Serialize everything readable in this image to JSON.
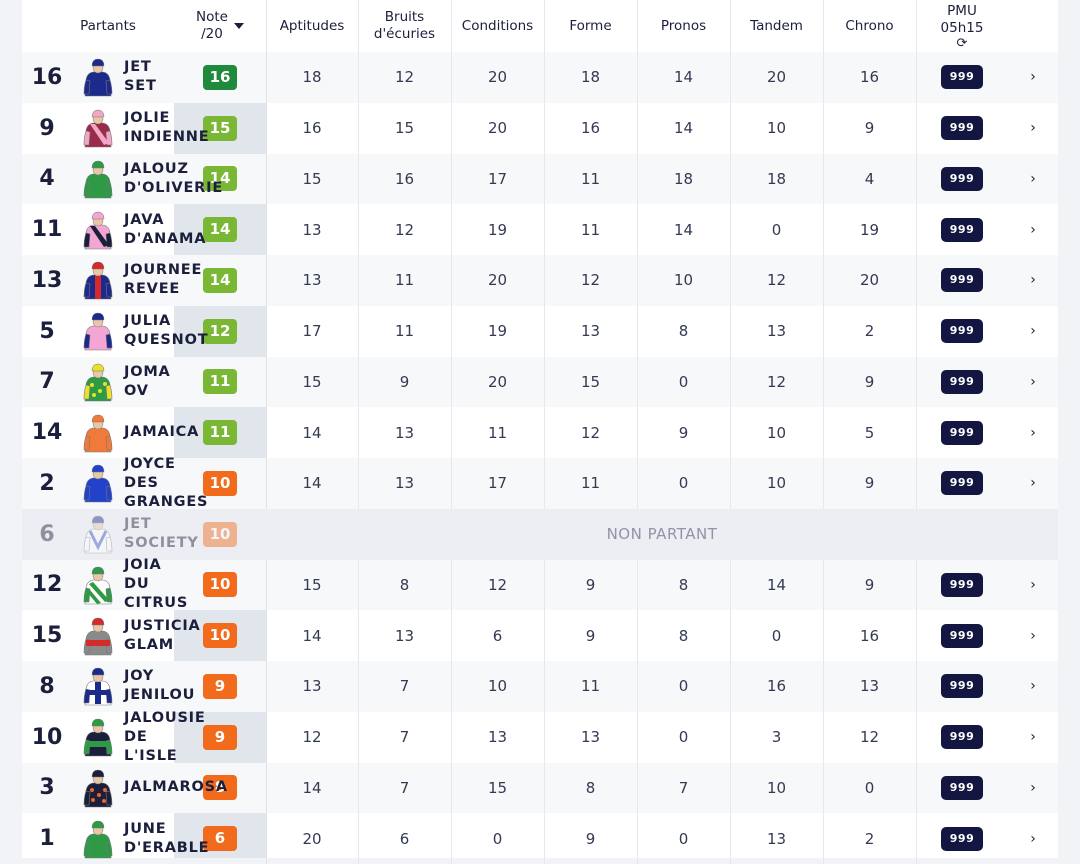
{
  "headers": {
    "partants": "Partants",
    "note": "Note\n/20",
    "aptitudes": "Aptitudes",
    "bruits": "Bruits\nd'écuries",
    "conditions": "Conditions",
    "forme": "Forme",
    "pronos": "Pronos",
    "tandem": "Tandem",
    "chrono": "Chrono",
    "pmu_title": "PMU",
    "pmu_time": "05h15",
    "refresh_icon": "⟳"
  },
  "colors": {
    "dark_green": "#1f8a3c",
    "light_green": "#7ab735",
    "orange": "#f26a1b",
    "odds_bg": "#121640"
  },
  "non_partant_label": "NON PARTANT",
  "odds_label": "999",
  "arrow": "›",
  "runners": [
    {
      "num": "16",
      "name": "JET\nSET",
      "note": "16",
      "note_color": "#1f8a3c",
      "aptitudes": "18",
      "bruits": "12",
      "conditions": "20",
      "forme": "18",
      "pronos": "14",
      "tandem": "20",
      "chrono": "16",
      "silk": {
        "body": "#1c2a8c",
        "sleeves": "#1c2a8c",
        "cap": "#1c2a8c",
        "pattern": "plain"
      }
    },
    {
      "num": "9",
      "name": "JOLIE\nINDIENNE",
      "note": "15",
      "note_color": "#7ab735",
      "aptitudes": "16",
      "bruits": "15",
      "conditions": "20",
      "forme": "16",
      "pronos": "14",
      "tandem": "10",
      "chrono": "9",
      "silk": {
        "body": "#9c2a4a",
        "sleeves": "#f1a7c6",
        "cap": "#f1a7c6",
        "pattern": "sash"
      }
    },
    {
      "num": "4",
      "name": "JALOUZ\nD'OLIVERIE",
      "note": "14",
      "note_color": "#7ab735",
      "aptitudes": "15",
      "bruits": "16",
      "conditions": "17",
      "forme": "11",
      "pronos": "18",
      "tandem": "18",
      "chrono": "4",
      "silk": {
        "body": "#2e9a45",
        "sleeves": "#2e9a45",
        "cap": "#2e9a45",
        "pattern": "plain"
      }
    },
    {
      "num": "11",
      "name": "JAVA\nD'ANAMA",
      "note": "14",
      "note_color": "#7ab735",
      "aptitudes": "13",
      "bruits": "12",
      "conditions": "19",
      "forme": "11",
      "pronos": "14",
      "tandem": "0",
      "chrono": "19",
      "silk": {
        "body": "#f3a6d4",
        "sleeves": "#1b1f3b",
        "cap": "#f3a6d4",
        "pattern": "sash"
      }
    },
    {
      "num": "13",
      "name": "JOURNEE\nREVEE",
      "note": "14",
      "note_color": "#7ab735",
      "aptitudes": "13",
      "bruits": "11",
      "conditions": "20",
      "forme": "12",
      "pronos": "10",
      "tandem": "12",
      "chrono": "20",
      "silk": {
        "body": "#1c2a8c",
        "sleeves": "#1c2a8c",
        "cap": "#d42a2a",
        "pattern": "stripe"
      }
    },
    {
      "num": "5",
      "name": "JULIA\nQUESNOT",
      "note": "12",
      "note_color": "#7ab735",
      "aptitudes": "17",
      "bruits": "11",
      "conditions": "19",
      "forme": "13",
      "pronos": "8",
      "tandem": "13",
      "chrono": "2",
      "silk": {
        "body": "#f3a6d4",
        "sleeves": "#1c2a8c",
        "cap": "#1c2a8c",
        "pattern": "plain"
      }
    },
    {
      "num": "7",
      "name": "JOMA\nOV",
      "note": "11",
      "note_color": "#7ab735",
      "aptitudes": "15",
      "bruits": "9",
      "conditions": "20",
      "forme": "15",
      "pronos": "0",
      "tandem": "12",
      "chrono": "9",
      "silk": {
        "body": "#2e9a45",
        "sleeves": "#e9e02b",
        "cap": "#e9e02b",
        "pattern": "check"
      }
    },
    {
      "num": "14",
      "name": "JAMAICA",
      "note": "11",
      "note_color": "#7ab735",
      "aptitudes": "14",
      "bruits": "13",
      "conditions": "11",
      "forme": "12",
      "pronos": "9",
      "tandem": "10",
      "chrono": "5",
      "silk": {
        "body": "#f07a3a",
        "sleeves": "#f07a3a",
        "cap": "#f07a3a",
        "pattern": "plain"
      }
    },
    {
      "num": "2",
      "name": "JOYCE\nDES\nGRANGES",
      "note": "10",
      "note_color": "#f26a1b",
      "aptitudes": "14",
      "bruits": "13",
      "conditions": "17",
      "forme": "11",
      "pronos": "0",
      "tandem": "10",
      "chrono": "9",
      "silk": {
        "body": "#2243c9",
        "sleeves": "#2243c9",
        "cap": "#2243c9",
        "pattern": "plain"
      }
    },
    {
      "num": "6",
      "name": "JET\nSOCIETY",
      "note": "10",
      "note_color": "#f26a1b",
      "non_partant": true,
      "silk": {
        "body": "#ffffff",
        "sleeves": "#ffffff",
        "cap": "#1c2a8c",
        "pattern": "chevron"
      }
    },
    {
      "num": "12",
      "name": "JOIA\nDU\nCITRUS",
      "note": "10",
      "note_color": "#f26a1b",
      "aptitudes": "15",
      "bruits": "8",
      "conditions": "12",
      "forme": "9",
      "pronos": "8",
      "tandem": "14",
      "chrono": "9",
      "silk": {
        "body": "#ffffff",
        "sleeves": "#2e9a45",
        "cap": "#2e9a45",
        "pattern": "diagonal"
      }
    },
    {
      "num": "15",
      "name": "JUSTICIA\nGLAM",
      "note": "10",
      "note_color": "#f26a1b",
      "aptitudes": "14",
      "bruits": "13",
      "conditions": "6",
      "forme": "9",
      "pronos": "8",
      "tandem": "0",
      "chrono": "16",
      "silk": {
        "body": "#8a8a8a",
        "sleeves": "#8a8a8a",
        "cap": "#d42a2a",
        "pattern": "hoop"
      }
    },
    {
      "num": "8",
      "name": "JOY\nJENILOU",
      "note": "9",
      "note_color": "#f26a1b",
      "aptitudes": "13",
      "bruits": "7",
      "conditions": "10",
      "forme": "11",
      "pronos": "0",
      "tandem": "16",
      "chrono": "13",
      "silk": {
        "body": "#ffffff",
        "sleeves": "#1c2a8c",
        "cap": "#1c2a8c",
        "pattern": "cross"
      }
    },
    {
      "num": "10",
      "name": "JALOUSIE\nDE L'ISLE",
      "note": "9",
      "note_color": "#f26a1b",
      "aptitudes": "12",
      "bruits": "7",
      "conditions": "13",
      "forme": "13",
      "pronos": "0",
      "tandem": "3",
      "chrono": "12",
      "silk": {
        "body": "#1b1f3b",
        "sleeves": "#2e9a45",
        "cap": "#2e9a45",
        "pattern": "hoop"
      }
    },
    {
      "num": "3",
      "name": "JALMAROSA",
      "note": "8",
      "note_color": "#f26a1b",
      "aptitudes": "14",
      "bruits": "7",
      "conditions": "15",
      "forme": "8",
      "pronos": "7",
      "tandem": "10",
      "chrono": "0",
      "silk": {
        "body": "#1b1f3b",
        "sleeves": "#1b1f3b",
        "cap": "#1b1f3b",
        "pattern": "dots"
      }
    },
    {
      "num": "1",
      "name": "JUNE\nD'ERABLE",
      "note": "6",
      "note_color": "#f26a1b",
      "aptitudes": "20",
      "bruits": "6",
      "conditions": "0",
      "forme": "9",
      "pronos": "0",
      "tandem": "13",
      "chrono": "2",
      "silk": {
        "body": "#2e9a45",
        "sleeves": "#2e9a45",
        "cap": "#2e9a45",
        "pattern": "plain"
      }
    }
  ]
}
